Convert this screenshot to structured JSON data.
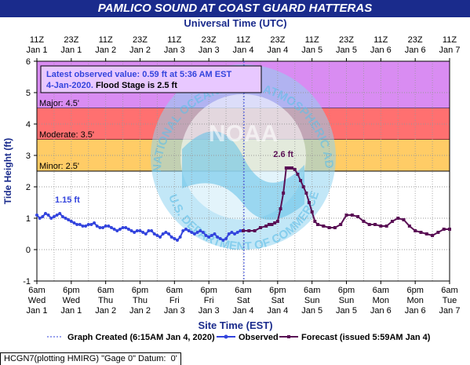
{
  "title": "PAMLICO SOUND AT COAST GUARD HATTERAS",
  "footer": "HCGN7(plotting HMIRG) \"Gage 0\" Datum:  0'",
  "chart_data": {
    "type": "line",
    "title": "PAMLICO SOUND AT COAST GUARD HATTERAS",
    "xlabel_top": "Universal Time (UTC)",
    "xlabel": "Site Time (EST)",
    "ylabel": "Tide Height (ft)",
    "ylim": [
      -1,
      6
    ],
    "yticks": [
      "-1",
      "0",
      "1",
      "2",
      "3",
      "4",
      "5",
      "6"
    ],
    "x_range_hours_est": [
      0,
      144
    ],
    "bottom_ticks": [
      {
        "line1": "6am",
        "line2": "Wed",
        "line3": "Jan 1"
      },
      {
        "line1": "6pm",
        "line2": "Wed",
        "line3": "Jan 1"
      },
      {
        "line1": "6am",
        "line2": "Thu",
        "line3": "Jan 2"
      },
      {
        "line1": "6pm",
        "line2": "Thu",
        "line3": "Jan 2"
      },
      {
        "line1": "6am",
        "line2": "Fri",
        "line3": "Jan 3"
      },
      {
        "line1": "6pm",
        "line2": "Fri",
        "line3": "Jan 3"
      },
      {
        "line1": "6am",
        "line2": "Sat",
        "line3": "Jan 4"
      },
      {
        "line1": "6pm",
        "line2": "Sat",
        "line3": "Jan 4"
      },
      {
        "line1": "6am",
        "line2": "Sun",
        "line3": "Jan 5"
      },
      {
        "line1": "6pm",
        "line2": "Sun",
        "line3": "Jan 5"
      },
      {
        "line1": "6am",
        "line2": "Mon",
        "line3": "Jan 6"
      },
      {
        "line1": "6pm",
        "line2": "Mon",
        "line3": "Jan 6"
      },
      {
        "line1": "6am",
        "line2": "Tue",
        "line3": "Jan 7"
      }
    ],
    "top_ticks": [
      {
        "line1": "11Z",
        "line2": "Jan 1"
      },
      {
        "line1": "23Z",
        "line2": "Jan 1"
      },
      {
        "line1": "11Z",
        "line2": "Jan 2"
      },
      {
        "line1": "23Z",
        "line2": "Jan 2"
      },
      {
        "line1": "11Z",
        "line2": "Jan 3"
      },
      {
        "line1": "23Z",
        "line2": "Jan 3"
      },
      {
        "line1": "11Z",
        "line2": "Jan 4"
      },
      {
        "line1": "23Z",
        "line2": "Jan 4"
      },
      {
        "line1": "11Z",
        "line2": "Jan 5"
      },
      {
        "line1": "23Z",
        "line2": "Jan 5"
      },
      {
        "line1": "11Z",
        "line2": "Jan 6"
      },
      {
        "line1": "23Z",
        "line2": "Jan 6"
      },
      {
        "line1": "11Z",
        "line2": "Jan 7"
      }
    ],
    "bands": [
      {
        "label": "Major: 4.5'",
        "from": 4.5,
        "to": 6,
        "color": "#d98cf2"
      },
      {
        "label": "Moderate: 3.5'",
        "from": 3.5,
        "to": 4.5,
        "color": "#ff7070"
      },
      {
        "label": "Minor: 2.5'",
        "from": 2.5,
        "to": 3.5,
        "color": "#ffcc66"
      }
    ],
    "info_box": {
      "line1": "Latest observed value: 0.59 ft at 5:36 AM EST",
      "line2_date": "4-Jan-2020.",
      "line2_flood": "Flood Stage is 2.5 ft"
    },
    "graph_created_hour": 72.25,
    "annotations": [
      {
        "text": "1.15 ft",
        "x": 3,
        "y": 1.15,
        "color": "#3344dd"
      },
      {
        "text": "2.6 ft",
        "x": 86,
        "y": 2.6,
        "color": "#5a1055"
      }
    ],
    "legend": {
      "graph_created": "Graph Created (6:15AM Jan 4, 2020)",
      "observed": "Observed",
      "forecast": "Forecast (issued 5:59AM Jan 4)"
    },
    "watermark_text": "NATIONAL OCEANIC AND ATMOSPHERIC ADMINISTRATION · U.S. DEPARTMENT OF COMMERCE · NOAA",
    "colors": {
      "observed": "#3344dd",
      "forecast": "#5a1055",
      "title_bg": "#1a2b8c",
      "axis_title": "#1a2b8c"
    },
    "observed": {
      "name": "Observed",
      "x": [
        0,
        1,
        2,
        3,
        4,
        5,
        6,
        7,
        8,
        9,
        10,
        11,
        12,
        13,
        14,
        15,
        16,
        17,
        18,
        19,
        20,
        21,
        22,
        23,
        24,
        25,
        26,
        27,
        28,
        29,
        30,
        31,
        32,
        33,
        34,
        35,
        36,
        37,
        38,
        39,
        40,
        41,
        42,
        43,
        44,
        45,
        46,
        47,
        48,
        49,
        50,
        51,
        52,
        53,
        54,
        55,
        56,
        57,
        58,
        59,
        60,
        61,
        62,
        63,
        64,
        65,
        66,
        67,
        68,
        69,
        70,
        71,
        72
      ],
      "y": [
        1.1,
        1.0,
        1.05,
        1.15,
        1.1,
        1.0,
        1.05,
        1.1,
        1.15,
        1.05,
        1.0,
        0.95,
        0.9,
        0.85,
        0.8,
        0.8,
        0.75,
        0.75,
        0.8,
        0.8,
        0.85,
        0.75,
        0.7,
        0.7,
        0.75,
        0.75,
        0.7,
        0.65,
        0.6,
        0.65,
        0.7,
        0.7,
        0.65,
        0.6,
        0.55,
        0.6,
        0.6,
        0.55,
        0.5,
        0.6,
        0.6,
        0.5,
        0.45,
        0.4,
        0.5,
        0.55,
        0.5,
        0.4,
        0.35,
        0.3,
        0.4,
        0.6,
        0.65,
        0.6,
        0.55,
        0.5,
        0.55,
        0.6,
        0.55,
        0.45,
        0.4,
        0.45,
        0.5,
        0.4,
        0.35,
        0.3,
        0.35,
        0.5,
        0.55,
        0.5,
        0.55,
        0.6,
        0.6
      ]
    },
    "forecast": {
      "name": "Forecast",
      "x": [
        72,
        74,
        76,
        78,
        80,
        81,
        82,
        83,
        84,
        85,
        86,
        87,
        88,
        89,
        90,
        91,
        92,
        93,
        94,
        95,
        96,
        97,
        98,
        100,
        102,
        104,
        106,
        108,
        110,
        112,
        114,
        116,
        118,
        120,
        122,
        124,
        126,
        128,
        130,
        132,
        134,
        136,
        138,
        140,
        142,
        144
      ],
      "y": [
        0.6,
        0.6,
        0.6,
        0.7,
        0.75,
        0.8,
        0.8,
        0.85,
        0.9,
        1.3,
        1.8,
        2.6,
        2.6,
        2.6,
        2.55,
        2.4,
        2.2,
        2.0,
        1.8,
        1.5,
        1.2,
        0.9,
        0.8,
        0.75,
        0.7,
        0.7,
        0.8,
        1.1,
        1.1,
        1.05,
        0.9,
        0.8,
        0.8,
        0.75,
        0.75,
        0.9,
        1.0,
        0.95,
        0.75,
        0.6,
        0.55,
        0.5,
        0.45,
        0.55,
        0.65,
        0.65
      ]
    }
  }
}
